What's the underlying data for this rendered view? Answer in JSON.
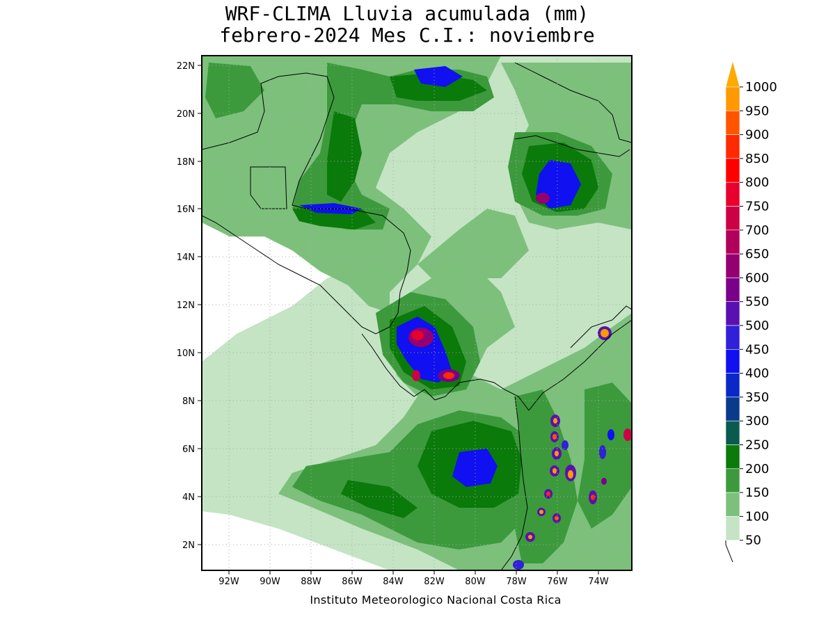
{
  "title": {
    "line1": "WRF-CLIMA Lluvia acumulada (mm)",
    "line2": "febrero-2024 Mes C.I.: noviembre"
  },
  "credit": "Instituto Meteorologico Nacional Costa Rica",
  "axes": {
    "lon_ticks": [
      "92W",
      "90W",
      "88W",
      "86W",
      "84W",
      "82W",
      "80W",
      "78W",
      "76W",
      "74W"
    ],
    "lat_ticks": [
      "22N",
      "20N",
      "18N",
      "16N",
      "14N",
      "12N",
      "10N",
      "8N",
      "6N",
      "4N",
      "2N"
    ]
  },
  "colorbar": {
    "levels": [
      "1000",
      "950",
      "900",
      "850",
      "800",
      "750",
      "700",
      "650",
      "600",
      "550",
      "500",
      "450",
      "400",
      "350",
      "300",
      "250",
      "200",
      "150",
      "100",
      "50"
    ],
    "colors": [
      "#ff9900",
      "#ff5500",
      "#ff2a00",
      "#ff0000",
      "#e8002e",
      "#cc0044",
      "#b0005a",
      "#950070",
      "#7a008a",
      "#5a10b0",
      "#3020d8",
      "#1010f0",
      "#0a28c8",
      "#0a3a8c",
      "#0a5a50",
      "#0a7a0a",
      "#3c9a3c",
      "#7cc07c",
      "#c4e4c4"
    ],
    "top_arrow_color": "#ffaa00"
  },
  "legend_palette": {
    "light_green": "#c4e4c4",
    "mid_green": "#7cc07c",
    "green": "#3c9a3c",
    "dark_green": "#0a7a0a",
    "blue": "#1010f0",
    "purple": "#7a008a",
    "red": "#ff0000",
    "orange": "#ff9900"
  }
}
